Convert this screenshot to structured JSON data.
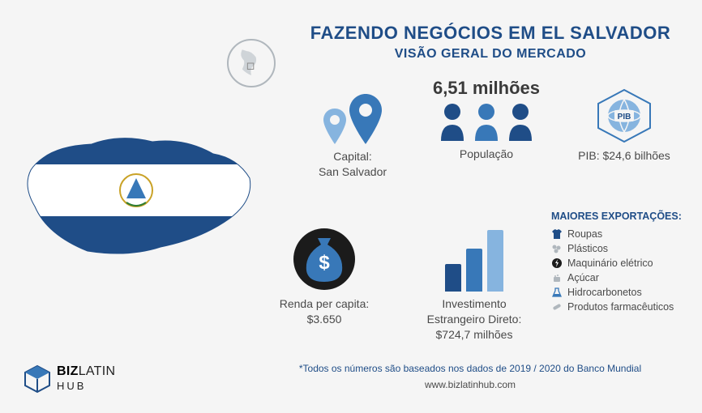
{
  "colors": {
    "primary_dark": "#1f4d87",
    "primary_mid": "#3878b8",
    "primary_light": "#86b4df",
    "text": "#4a4a4a",
    "grey": "#b0b7bd",
    "bg": "#f5f5f5",
    "white": "#ffffff",
    "flag_blue": "#1f4d87"
  },
  "header": {
    "title": "FAZENDO NEGÓCIOS EM EL SALVADOR",
    "subtitle": "VISÃO GERAL DO MERCADO"
  },
  "capital": {
    "label": "Capital:\nSan Salvador"
  },
  "population": {
    "value": "6,51 milhões",
    "label": "População"
  },
  "pib": {
    "badge": "PIB",
    "label": "PIB: $24,6 bilhões"
  },
  "income": {
    "label": "Renda per capita:\n$3.650"
  },
  "fdi": {
    "label": "Investimento\nEstrangeiro Direto:\n$724,7 milhões",
    "bars": [
      0.45,
      0.7,
      1.0
    ]
  },
  "exports": {
    "heading": "MAIORES EXPORTAÇÕES:",
    "items": [
      {
        "icon": "shirt",
        "label": "Roupas"
      },
      {
        "icon": "plastic",
        "label": "Plásticos"
      },
      {
        "icon": "bolt",
        "label": "Maquinário elétrico"
      },
      {
        "icon": "sugar",
        "label": "Açúcar"
      },
      {
        "icon": "flask",
        "label": "Hidrocarbonetos"
      },
      {
        "icon": "pill",
        "label": "Produtos farmacêuticos"
      }
    ]
  },
  "footnote": "*Todos os números são baseados nos dados de 2019 / 2020 do Banco Mundial",
  "website": "www.bizlatinhub.com",
  "logo": {
    "line1": "BIZ",
    "line2": "LATIN",
    "line3": "HUB"
  }
}
